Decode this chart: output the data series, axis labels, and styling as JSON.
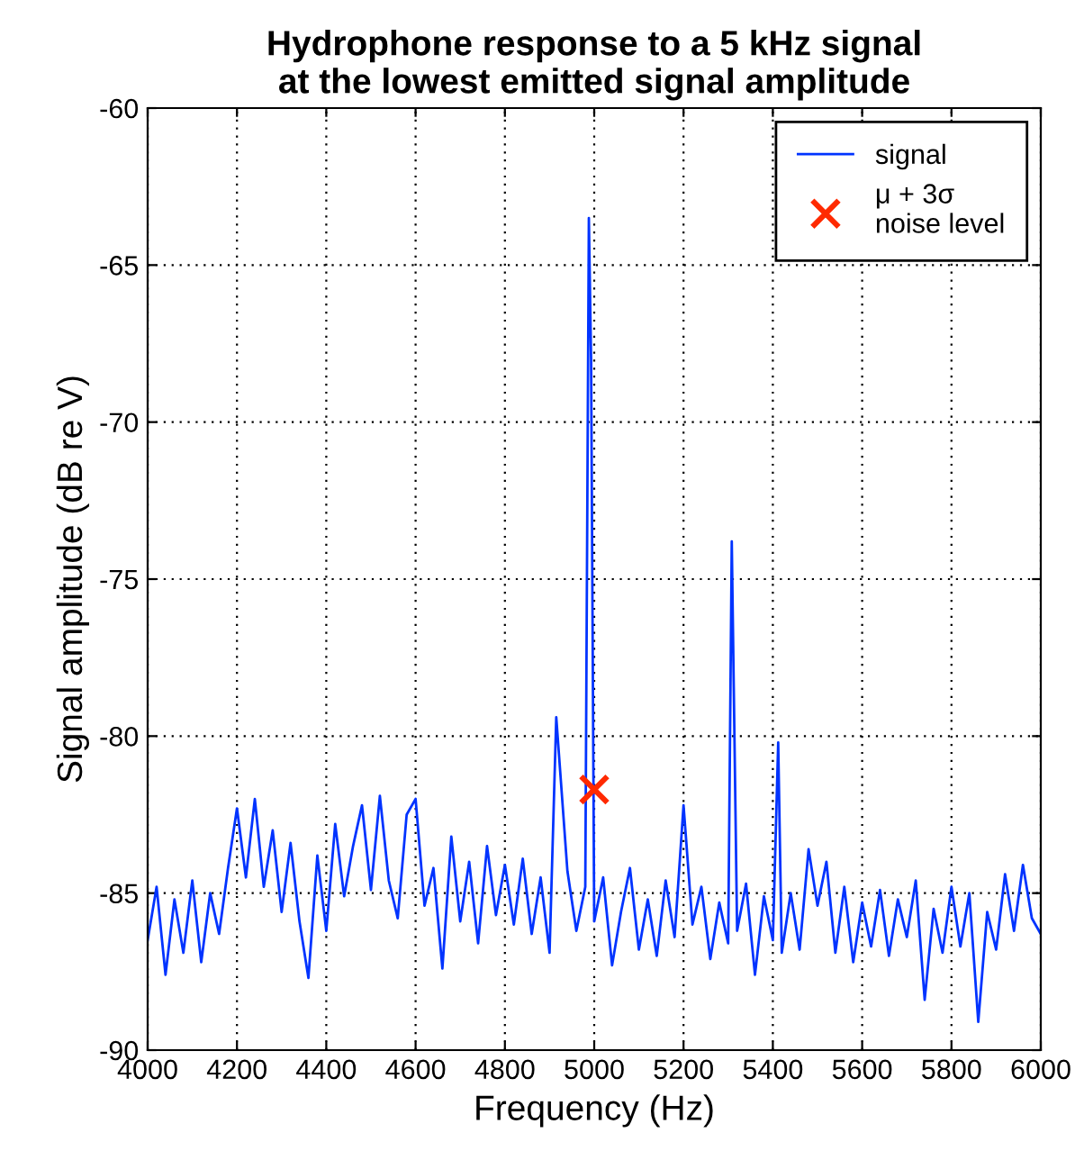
{
  "chart_data": {
    "type": "line",
    "title": "Hydrophone response to a 5 kHz signal\nat the lowest emitted signal amplitude",
    "xlabel": "Frequency (Hz)",
    "ylabel": "Signal amplitude (dB re V)",
    "xlim": [
      4000,
      6000
    ],
    "xticks": [
      4000,
      4200,
      4400,
      4600,
      4800,
      5000,
      5200,
      5400,
      5600,
      5800,
      6000
    ],
    "ylim": [
      -90,
      -60
    ],
    "yticks": [
      -90,
      -85,
      -80,
      -75,
      -70,
      -65,
      -60
    ],
    "grid": true,
    "legend": "top right",
    "series": [
      {
        "name": "signal",
        "color": "#0033ff",
        "marker": "none",
        "x": [
          4000,
          4020,
          4040,
          4060,
          4080,
          4100,
          4120,
          4140,
          4160,
          4180,
          4200,
          4220,
          4240,
          4260,
          4280,
          4300,
          4320,
          4340,
          4360,
          4380,
          4400,
          4420,
          4440,
          4460,
          4480,
          4500,
          4520,
          4540,
          4560,
          4580,
          4600,
          4620,
          4640,
          4660,
          4680,
          4700,
          4720,
          4740,
          4760,
          4780,
          4800,
          4820,
          4840,
          4860,
          4880,
          4900,
          4915,
          4940,
          4960,
          4980,
          4988,
          4993,
          5000,
          5020,
          5040,
          5060,
          5080,
          5100,
          5120,
          5140,
          5160,
          5180,
          5200,
          5220,
          5240,
          5260,
          5280,
          5300,
          5308,
          5320,
          5340,
          5360,
          5380,
          5400,
          5412,
          5420,
          5440,
          5460,
          5480,
          5500,
          5520,
          5540,
          5560,
          5580,
          5600,
          5620,
          5640,
          5660,
          5680,
          5700,
          5720,
          5740,
          5760,
          5780,
          5800,
          5820,
          5840,
          5860,
          5880,
          5900,
          5920,
          5940,
          5960,
          5980,
          6000
        ],
        "values": [
          -86.5,
          -84.8,
          -87.6,
          -85.2,
          -86.9,
          -84.6,
          -87.2,
          -85.0,
          -86.3,
          -84.2,
          -82.3,
          -84.5,
          -82.0,
          -84.8,
          -83.0,
          -85.6,
          -83.4,
          -85.9,
          -87.7,
          -83.8,
          -86.2,
          -82.8,
          -85.1,
          -83.5,
          -82.2,
          -84.9,
          -81.9,
          -84.6,
          -85.8,
          -82.5,
          -82.0,
          -85.4,
          -84.2,
          -87.4,
          -83.2,
          -85.9,
          -84.0,
          -86.6,
          -83.5,
          -85.7,
          -84.1,
          -86.0,
          -83.9,
          -86.3,
          -84.5,
          -86.9,
          -79.4,
          -84.3,
          -86.2,
          -84.8,
          -63.5,
          -68.0,
          -85.9,
          -84.5,
          -87.3,
          -85.6,
          -84.2,
          -86.8,
          -85.2,
          -87.0,
          -84.6,
          -86.4,
          -82.2,
          -86.0,
          -84.8,
          -87.1,
          -85.3,
          -86.6,
          -73.8,
          -86.2,
          -84.7,
          -87.6,
          -85.1,
          -86.5,
          -80.2,
          -86.9,
          -85.0,
          -86.8,
          -83.6,
          -85.4,
          -84.0,
          -86.9,
          -84.8,
          -87.2,
          -85.3,
          -86.7,
          -84.9,
          -87.0,
          -85.2,
          -86.4,
          -84.6,
          -88.4,
          -85.5,
          -86.9,
          -84.8,
          -86.7,
          -85.0,
          -89.1,
          -85.6,
          -86.8,
          -84.4,
          -86.2,
          -84.1,
          -85.8,
          -86.3
        ]
      },
      {
        "name": "μ + 3σ\nnoise level",
        "type": "scatter",
        "color": "#ff2a00",
        "marker": "cross",
        "x": [
          5000
        ],
        "values": [
          -81.7
        ]
      }
    ]
  }
}
